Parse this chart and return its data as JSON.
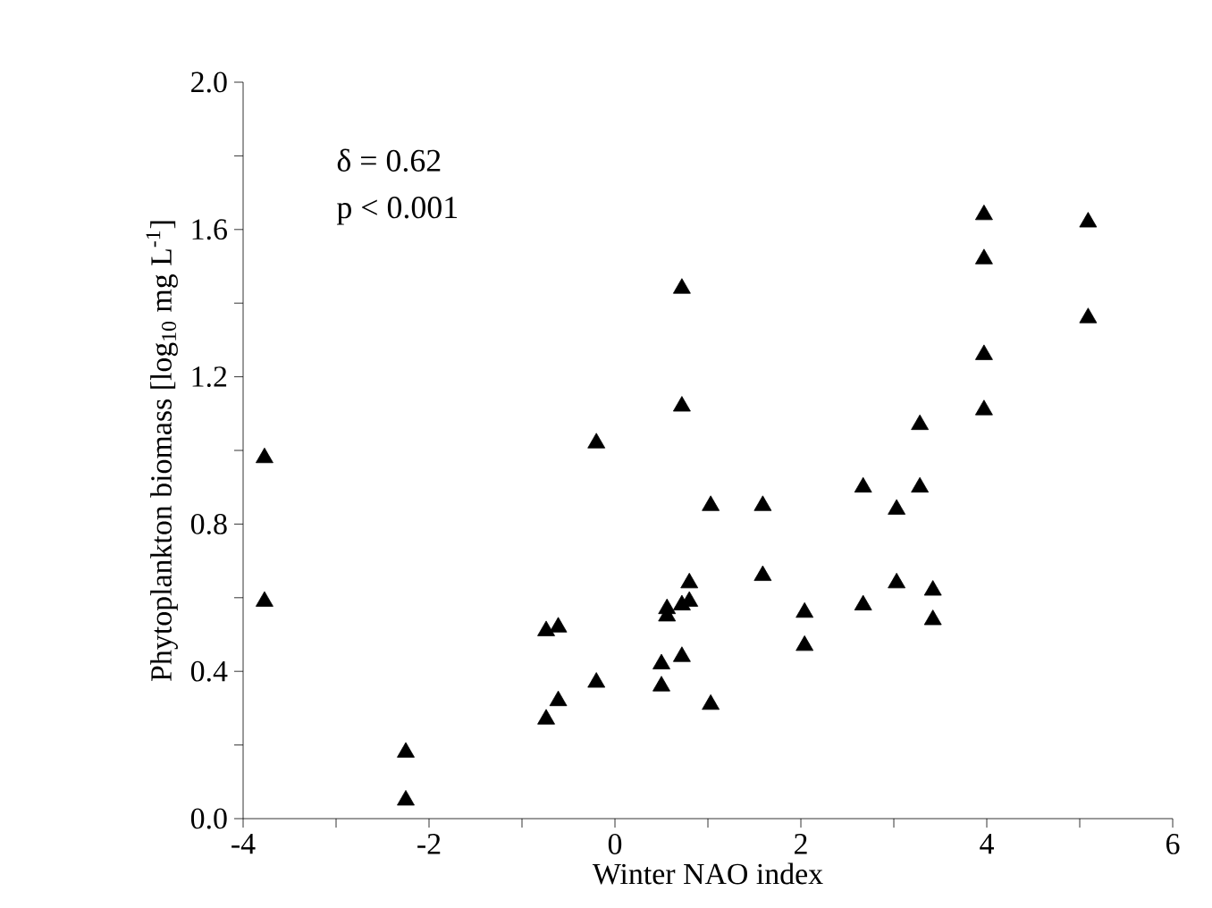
{
  "chart_data": {
    "type": "scatter",
    "xlabel": "Winter NAO index",
    "ylabel": "Phytoplankton biomass [log$_{10}$ mg L$^{-1}$]",
    "annotations": [
      "δ = 0.62",
      "p < 0.001"
    ],
    "series": [
      {
        "color": "#000000",
        "x": [
          -3.77,
          -3.77,
          -2.25,
          -2.25,
          -0.74,
          -0.74,
          -0.61,
          -0.61,
          -0.2,
          -0.2,
          0.5,
          0.5,
          0.56,
          0.56,
          0.72,
          0.72,
          0.72,
          0.72,
          0.8,
          0.8,
          1.03,
          1.03,
          1.59,
          1.59,
          2.04,
          2.04,
          2.67,
          2.67,
          3.03,
          3.03,
          3.28,
          3.28,
          3.42,
          3.42,
          3.97,
          3.97,
          3.97,
          3.97,
          5.09,
          5.09
        ],
        "values": [
          0.98,
          0.59,
          0.18,
          0.05,
          0.51,
          0.27,
          0.52,
          0.32,
          1.02,
          0.37,
          0.42,
          0.36,
          0.57,
          0.55,
          1.44,
          1.12,
          0.44,
          0.58,
          0.64,
          0.59,
          0.85,
          0.31,
          0.85,
          0.66,
          0.56,
          0.47,
          0.9,
          0.58,
          0.84,
          0.64,
          1.07,
          0.9,
          0.62,
          0.54,
          1.64,
          1.52,
          1.26,
          1.11,
          1.62,
          1.36
        ]
      }
    ],
    "marker": "triangle",
    "xlim": [
      -4,
      6
    ],
    "xticks": [
      -4,
      {
        "value": -3,
        "label": null
      },
      -2,
      {
        "value": -1,
        "label": null
      },
      0,
      {
        "value": 1,
        "label": null
      },
      2,
      {
        "value": 3,
        "label": null
      },
      4,
      {
        "value": 5,
        "label": null
      },
      6
    ],
    "ylim": [
      0,
      2
    ],
    "yticks": [
      {
        "value": 0,
        "label": "0.0"
      },
      {
        "value": 0.2,
        "label": null
      },
      {
        "value": 0.4,
        "label": "0.4"
      },
      {
        "value": 0.6,
        "label": null
      },
      {
        "value": 0.8,
        "label": "0.8"
      },
      {
        "value": 1.0,
        "label": null
      },
      {
        "value": 1.2,
        "label": "1.2"
      },
      {
        "value": 1.4,
        "label": null
      },
      {
        "value": 1.6,
        "label": "1.6"
      },
      {
        "value": 1.8,
        "label": null
      },
      {
        "value": 2,
        "label": "2.0"
      }
    ]
  }
}
